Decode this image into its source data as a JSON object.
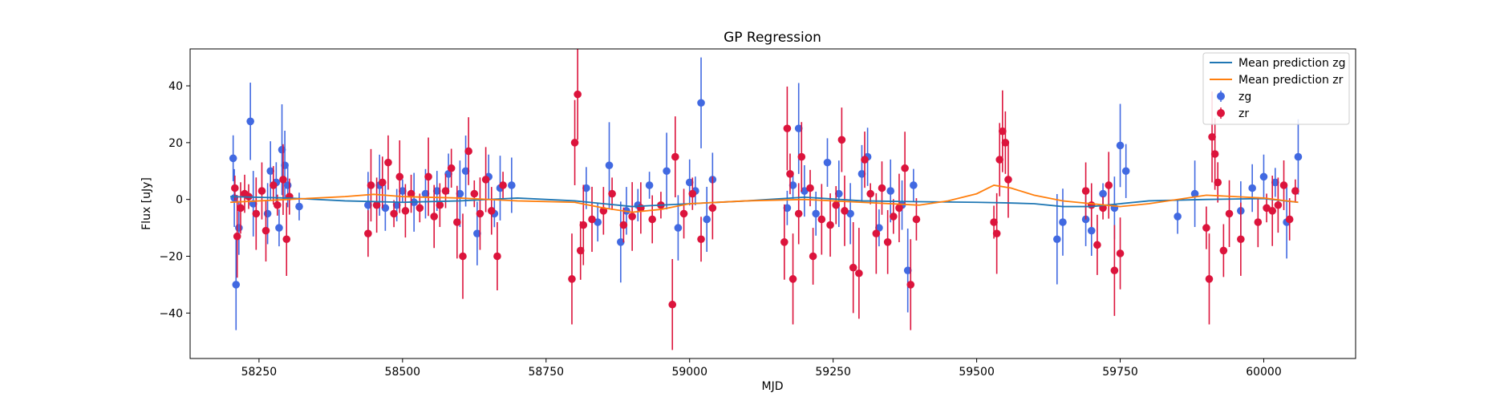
{
  "chart_data": {
    "type": "scatter",
    "title": "GP Regression",
    "xlabel": "MJD",
    "ylabel": "Flux [uJy]",
    "xlim": [
      58130,
      60160
    ],
    "ylim": [
      -56,
      53
    ],
    "xticks": [
      58250,
      58500,
      58750,
      59000,
      59250,
      59500,
      59750,
      60000
    ],
    "yticks": [
      -40,
      -20,
      0,
      20,
      40
    ],
    "grid": false,
    "legend_position": "top-right",
    "colors": {
      "zg": "#4169e1",
      "zr": "#dc143c",
      "mean_zg": "#1f77b4",
      "mean_zr": "#ff7f0e"
    },
    "legend": [
      "Mean prediction zg",
      "Mean prediction zr",
      "zg",
      "zr"
    ],
    "lines": [
      {
        "name": "Mean prediction zg",
        "x": [
          58200,
          58300,
          58400,
          58500,
          58600,
          58700,
          58800,
          58850,
          58900,
          58950,
          59000,
          59100,
          59200,
          59300,
          59400,
          59500,
          59550,
          59600,
          59650,
          59700,
          59750,
          59800,
          59900,
          60000,
          60060
        ],
        "y": [
          1,
          0.5,
          -0.5,
          -1,
          -0.5,
          0.5,
          -0.5,
          -1.5,
          -2.5,
          -2,
          -1.5,
          -0.5,
          0.8,
          -0.5,
          -0.8,
          -1,
          -1.2,
          -1.5,
          -2.5,
          -2.5,
          -1.5,
          -0.5,
          0,
          0.3,
          -1
        ]
      },
      {
        "name": "Mean prediction zr",
        "x": [
          58200,
          58300,
          58400,
          58450,
          58500,
          58600,
          58700,
          58800,
          58850,
          58900,
          58950,
          59000,
          59100,
          59200,
          59300,
          59400,
          59450,
          59500,
          59530,
          59560,
          59600,
          59650,
          59700,
          59750,
          59800,
          59900,
          60000,
          60060
        ],
        "y": [
          -1,
          0,
          1,
          1.8,
          1,
          0.5,
          -0.5,
          -1,
          -3,
          -4.5,
          -3.5,
          -1.5,
          -0.5,
          0,
          -1,
          -2,
          -0.5,
          2,
          5,
          4,
          1.5,
          -0.5,
          -1.5,
          -2.5,
          -1.5,
          1.5,
          0.5,
          -1
        ]
      }
    ],
    "series": [
      {
        "name": "zg",
        "x": [
          58205,
          58207,
          58210,
          58215,
          58235,
          58240,
          58265,
          58270,
          58280,
          58285,
          58290,
          58295,
          58300,
          58320,
          58440,
          58460,
          58470,
          58490,
          58500,
          58520,
          58540,
          58560,
          58580,
          58600,
          58610,
          58630,
          58650,
          58660,
          58670,
          58690,
          58820,
          58840,
          58860,
          58880,
          58890,
          58910,
          58930,
          58960,
          58980,
          59000,
          59010,
          59020,
          59030,
          59040,
          59170,
          59180,
          59190,
          59200,
          59220,
          59240,
          59260,
          59280,
          59300,
          59310,
          59330,
          59350,
          59370,
          59380,
          59390,
          59640,
          59650,
          59690,
          59700,
          59720,
          59740,
          59750,
          59760,
          59850,
          59880,
          59960,
          59980,
          60000,
          60020,
          60040,
          60060
        ],
        "y": [
          14.5,
          0.5,
          -30,
          -10,
          27.5,
          -1.5,
          -5,
          10,
          6,
          -10,
          17.5,
          12,
          5,
          -2.5,
          -2,
          5,
          -3,
          -2,
          3,
          -1,
          2,
          3,
          9,
          2,
          10,
          -12,
          8,
          -5,
          4,
          5,
          4,
          -8,
          12,
          -15,
          -4,
          -2,
          5,
          10,
          -10,
          6,
          3,
          34,
          -7,
          7,
          -3,
          5,
          25,
          3,
          -5,
          13,
          2,
          -5,
          9,
          15,
          -10,
          3,
          -2,
          -25,
          5,
          -14,
          -8,
          -7,
          -11,
          2,
          -3,
          19,
          10,
          -6,
          2,
          -4,
          4,
          8,
          6,
          -8,
          15
        ]
      },
      {
        "name": "zr",
        "x": [
          58208,
          58212,
          58218,
          58225,
          58232,
          58245,
          58255,
          58262,
          58275,
          58282,
          58292,
          58298,
          58303,
          58440,
          58445,
          58455,
          58465,
          58475,
          58485,
          58495,
          58505,
          58515,
          58530,
          58545,
          58555,
          58565,
          58575,
          58585,
          58595,
          58605,
          58615,
          58625,
          58635,
          58645,
          58655,
          58665,
          58675,
          58795,
          58800,
          58805,
          58810,
          58815,
          58830,
          58850,
          58865,
          58885,
          58900,
          58915,
          58935,
          58950,
          58970,
          58975,
          58990,
          59005,
          59020,
          59040,
          59165,
          59170,
          59175,
          59180,
          59190,
          59195,
          59210,
          59215,
          59230,
          59245,
          59255,
          59265,
          59270,
          59285,
          59295,
          59305,
          59315,
          59325,
          59335,
          59345,
          59355,
          59365,
          59375,
          59385,
          59395,
          59530,
          59535,
          59540,
          59545,
          59550,
          59555,
          59690,
          59700,
          59710,
          59720,
          59730,
          59740,
          59750,
          59900,
          59905,
          59910,
          59915,
          59920,
          59930,
          59940,
          59960,
          59990,
          60005,
          60015,
          60025,
          60035,
          60045,
          60055
        ],
        "y": [
          4,
          -13,
          -3,
          2,
          1,
          -5,
          3,
          -11,
          5,
          -2,
          7,
          -14,
          1,
          -12,
          5,
          -2,
          6,
          13,
          -5,
          8,
          -4,
          2,
          -3,
          8,
          -6,
          -2,
          3,
          11,
          -8,
          -20,
          17,
          2,
          -5,
          7,
          -4,
          -20,
          5,
          -28,
          20,
          37,
          -18,
          -9,
          -7,
          -4,
          2,
          -9,
          -6,
          -3,
          -7,
          -2,
          -37,
          15,
          -5,
          2,
          -14,
          -3,
          -15,
          25,
          9,
          -28,
          -5,
          15,
          4,
          -20,
          -7,
          -9,
          -2,
          21,
          -4,
          -24,
          -26,
          14,
          2,
          -12,
          4,
          -15,
          -6,
          -3,
          11,
          -30,
          -7,
          -8,
          -12,
          14,
          24,
          20,
          7,
          3,
          -2,
          -16,
          -3,
          5,
          -25,
          -19,
          -10,
          -28,
          22,
          16,
          6,
          -18,
          -5,
          -14,
          -8,
          -3,
          -4,
          -2,
          5,
          -7,
          3
        ]
      }
    ]
  }
}
